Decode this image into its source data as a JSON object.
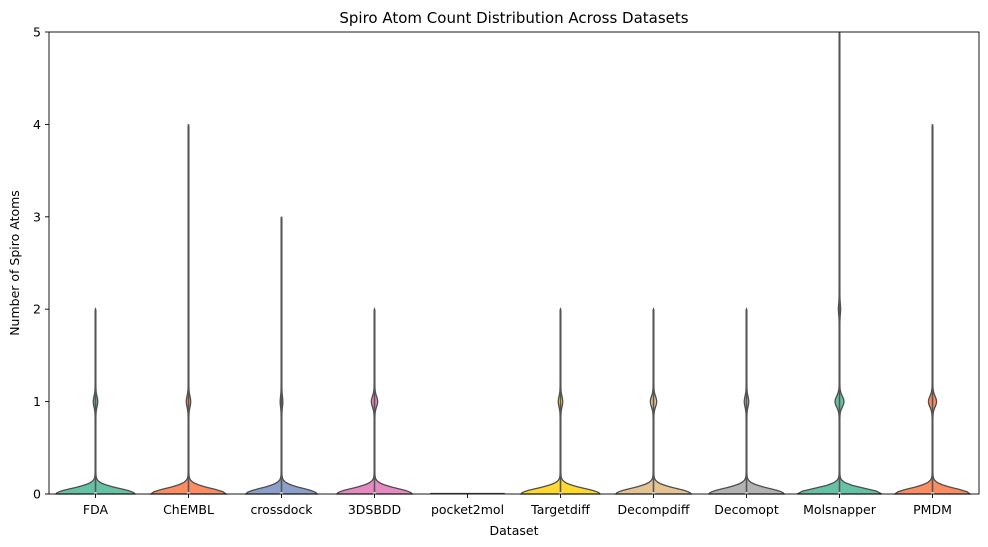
{
  "chart_data": {
    "type": "violin",
    "title": "Spiro Atom Count Distribution Across Datasets",
    "xlabel": "Dataset",
    "ylabel": "Number of Spiro Atoms",
    "ylim": [
      0,
      5
    ],
    "yticks": [
      0,
      1,
      2,
      3,
      4,
      5
    ],
    "grid": false,
    "legend": "none",
    "categories": [
      "FDA",
      "ChEMBL",
      "crossdock",
      "3DSBDD",
      "pocket2mol",
      "Targetdiff",
      "Decompdiff",
      "Decomopt",
      "Molsnapper",
      "PMDM"
    ],
    "series": [
      {
        "category": "FDA",
        "color": "#66c2a5",
        "max": 2,
        "base_halfwidth": 0.42,
        "bump_at_1": 0.02,
        "bump_at_2": 0
      },
      {
        "category": "ChEMBL",
        "color": "#fc8d62",
        "max": 4,
        "base_halfwidth": 0.4,
        "bump_at_1": 0.02,
        "bump_at_2": 0
      },
      {
        "category": "crossdock",
        "color": "#8da0cb",
        "max": 3,
        "base_halfwidth": 0.38,
        "bump_at_1": 0.01,
        "bump_at_2": 0
      },
      {
        "category": "3DSBDD",
        "color": "#e78ac3",
        "max": 2,
        "base_halfwidth": 0.4,
        "bump_at_1": 0.03,
        "bump_at_2": 0
      },
      {
        "category": "pocket2mol",
        "color": "#a6d854",
        "max": 0,
        "base_halfwidth": 0.4,
        "bump_at_1": 0,
        "bump_at_2": 0
      },
      {
        "category": "Targetdiff",
        "color": "#ffd92f",
        "max": 2,
        "base_halfwidth": 0.42,
        "bump_at_1": 0.02,
        "bump_at_2": 0
      },
      {
        "category": "Decompdiff",
        "color": "#e5c494",
        "max": 2,
        "base_halfwidth": 0.4,
        "bump_at_1": 0.03,
        "bump_at_2": 0
      },
      {
        "category": "Decomopt",
        "color": "#b3b3b3",
        "max": 2,
        "base_halfwidth": 0.4,
        "bump_at_1": 0.02,
        "bump_at_2": 0
      },
      {
        "category": "Molsnapper",
        "color": "#66c2a5",
        "max": 5,
        "base_halfwidth": 0.45,
        "bump_at_1": 0.045,
        "bump_at_2": 0.008
      },
      {
        "category": "PMDM",
        "color": "#fc8d62",
        "max": 4,
        "base_halfwidth": 0.4,
        "bump_at_1": 0.04,
        "bump_at_2": 0
      }
    ]
  }
}
